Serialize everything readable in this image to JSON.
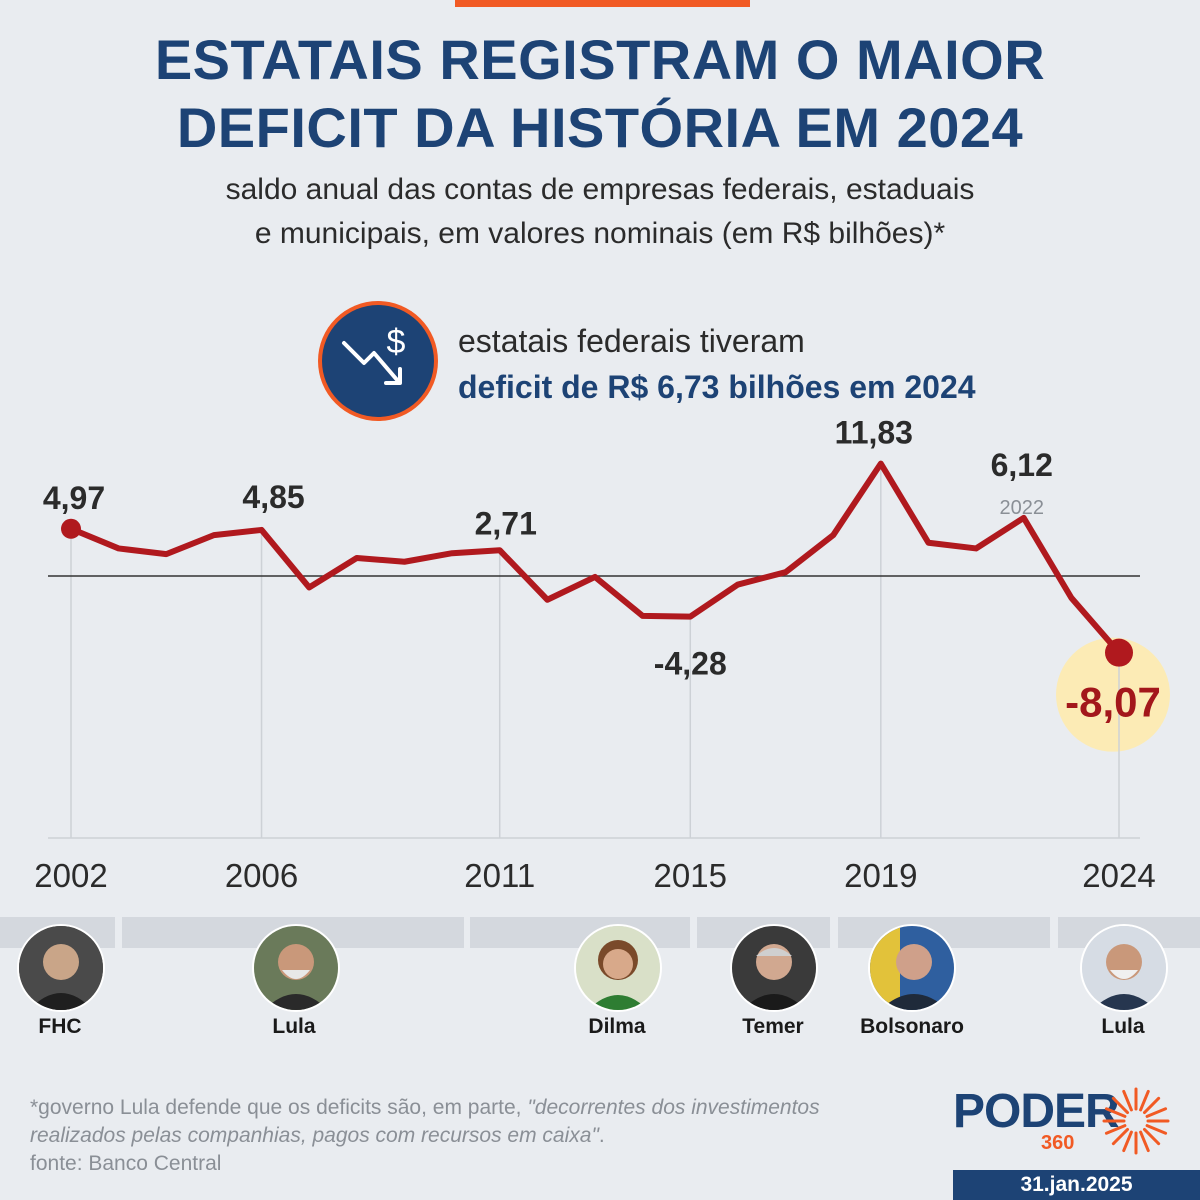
{
  "header": {
    "title_line1": "ESTATAIS REGISTRAM O MAIOR",
    "title_line2": "DEFICIT DA HISTÓRIA EM 2024",
    "subtitle_line1": "saldo anual das contas de empresas federais, estaduais",
    "subtitle_line2": "e municipais, em valores nominais (em R$ bilhões)*"
  },
  "callout": {
    "line1": "estatais federais tiveram",
    "line2": "deficit de R$ 6,73 bilhões em 2024",
    "icon": "falling-dollar-icon"
  },
  "colors": {
    "title": "#1d4375",
    "line": "#b0191e",
    "accent": "#f15a24",
    "highlight": "#fcebb5",
    "background": "#e9ecf0"
  },
  "chart_data": {
    "type": "line",
    "title": "ESTATAIS REGISTRAM O MAIOR DEFICIT DA HISTÓRIA EM 2024",
    "subtitle": "saldo anual das contas de empresas federais, estaduais e municipais, em valores nominais (em R$ bilhões)*",
    "x": [
      2002,
      2003,
      2004,
      2005,
      2006,
      2007,
      2008,
      2009,
      2010,
      2011,
      2012,
      2013,
      2014,
      2015,
      2016,
      2017,
      2018,
      2019,
      2020,
      2021,
      2022,
      2023,
      2024
    ],
    "values": [
      4.97,
      2.9,
      2.3,
      4.3,
      4.85,
      -1.2,
      1.9,
      1.5,
      2.4,
      2.71,
      -2.5,
      -0.1,
      -4.2,
      -4.28,
      -0.9,
      0.4,
      4.3,
      11.83,
      3.5,
      2.9,
      6.12,
      -2.3,
      -8.07
    ],
    "xticks": [
      "2002",
      "2006",
      "2011",
      "2015",
      "2019",
      "2024"
    ],
    "zero_line": true,
    "labels": [
      {
        "x": 2002,
        "text": "4,97"
      },
      {
        "x": 2006,
        "text": "4,85"
      },
      {
        "x": 2011,
        "text": "2,71"
      },
      {
        "x": 2015,
        "text": "-4,28"
      },
      {
        "x": 2019,
        "text": "11,83"
      },
      {
        "x": 2022,
        "text": "6,12",
        "sub": "2022"
      },
      {
        "x": 2024,
        "text": "-8,07",
        "highlight": true
      }
    ]
  },
  "presidents": [
    {
      "name": "FHC"
    },
    {
      "name": "Lula"
    },
    {
      "name": "Dilma"
    },
    {
      "name": "Temer"
    },
    {
      "name": "Bolsonaro"
    },
    {
      "name": "Lula"
    }
  ],
  "footer": {
    "note_plain": "*governo Lula defende que os deficits são, em parte, ",
    "note_quote": "\"decorrentes dos investimentos realizados pelas companhias, pagos com recursos em caixa\"",
    "note_end": ".",
    "source": "fonte: Banco Central",
    "logo_word": "PODER",
    "logo_num": "360",
    "date": "31.jan.2025"
  }
}
